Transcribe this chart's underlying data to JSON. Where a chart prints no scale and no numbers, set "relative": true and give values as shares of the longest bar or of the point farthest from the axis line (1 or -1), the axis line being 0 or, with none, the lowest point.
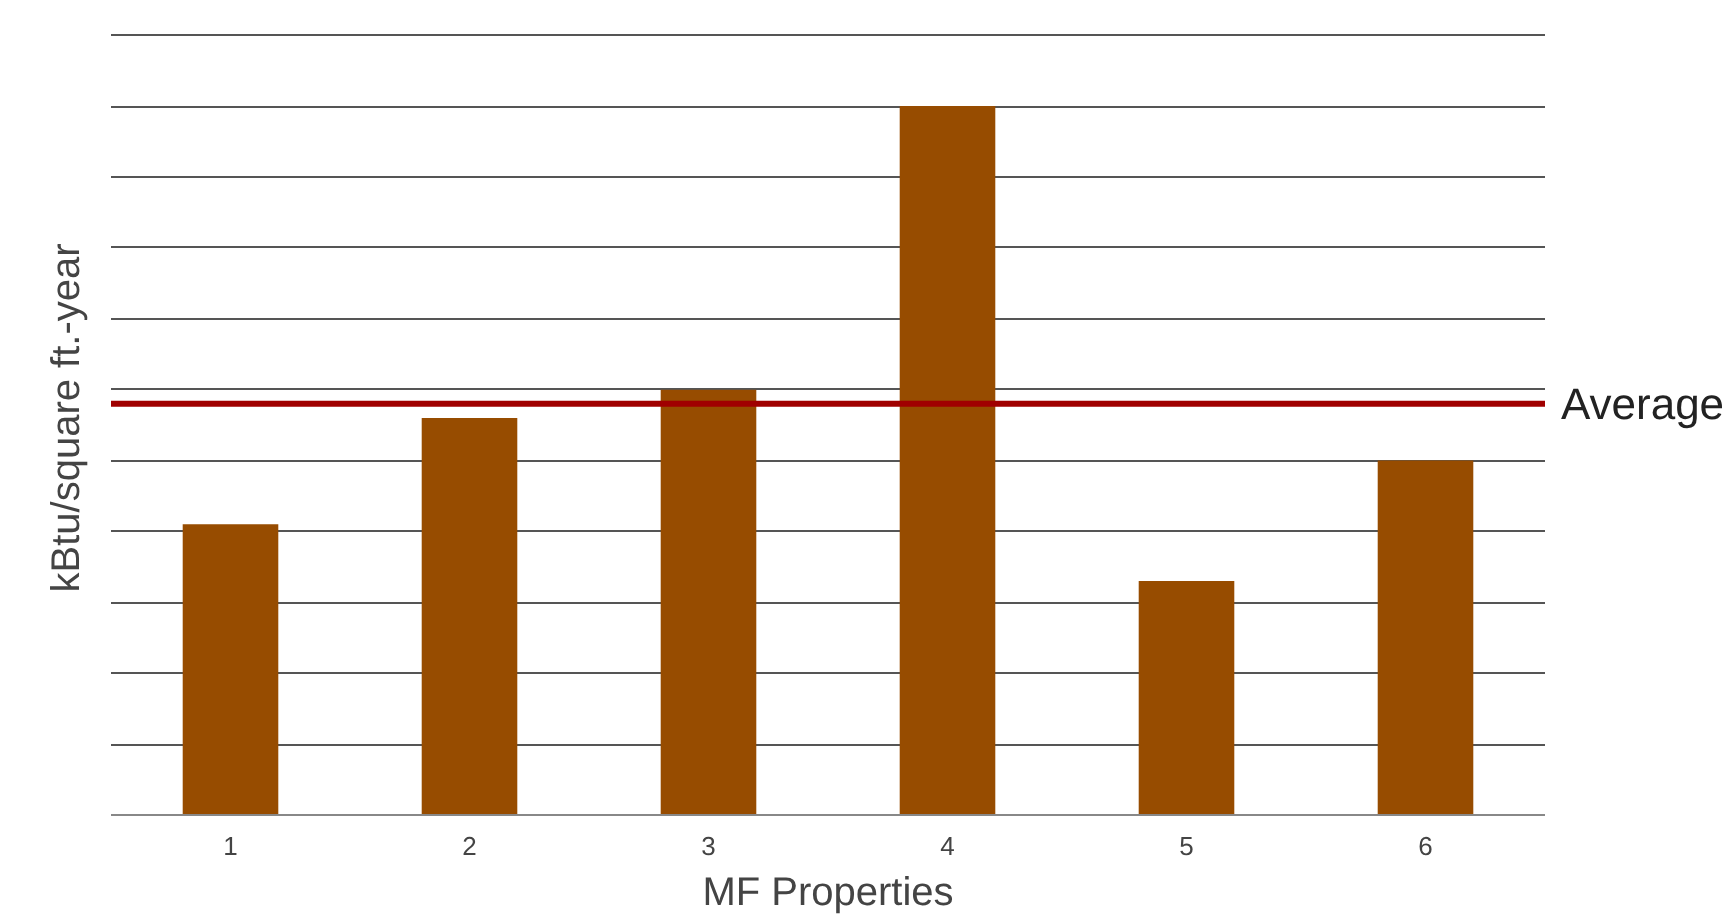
{
  "chart_data": {
    "type": "bar",
    "xlabel": "MF Properties",
    "ylabel": "kBtu/square ft.-year",
    "categories": [
      "1",
      "2",
      "3",
      "4",
      "5",
      "6"
    ],
    "values": [
      0.41,
      0.56,
      0.6,
      1,
      0.33,
      0.5
    ],
    "color": "#974c00",
    "relative": true,
    "grid": "y",
    "ref_lines": [
      {
        "axis": "y",
        "value": 0.58,
        "label": "Average",
        "color": "#a00000"
      }
    ]
  }
}
